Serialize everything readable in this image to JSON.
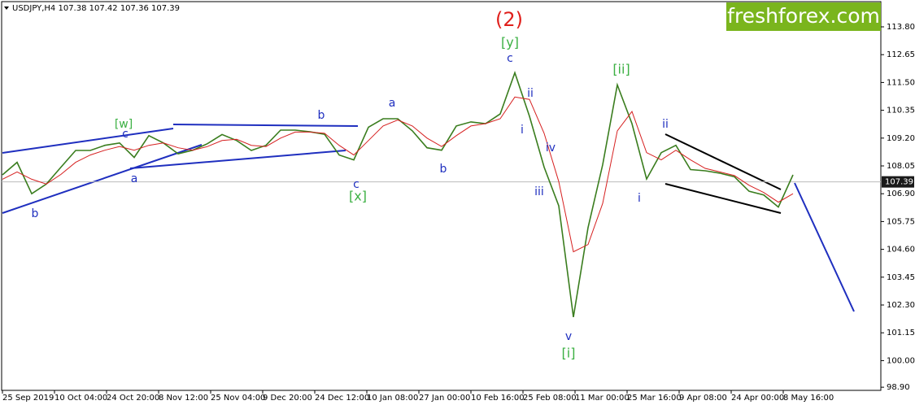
{
  "chart_data": {
    "type": "line",
    "header": "USDJPY,H4  107.38 107.42 107.36 107.39",
    "logo": "freshforex.com",
    "x_tick_labels": [
      "25 Sep 2019",
      "10 Oct 04:00",
      "24 Oct 20:00",
      "8 Nov 12:00",
      "25 Nov 04:00",
      "9 Dec 20:00",
      "24 Dec 12:00",
      "10 Jan 08:00",
      "27 Jan 00:00",
      "10 Feb 16:00",
      "25 Feb 08:00",
      "11 Mar 00:00",
      "25 Mar 16:00",
      "9 Apr 08:00",
      "24 Apr 00:00",
      "8 May 16:00"
    ],
    "ylim": [
      98.77,
      114.91
    ],
    "yticks": [
      {
        "value": 113.8,
        "label": "113.80"
      },
      112.65,
      {
        "value": 111.5,
        "label": "111.50"
      },
      110.35,
      {
        "value": 109.2,
        "label": "109.20"
      },
      108.05,
      {
        "value": 106.9,
        "label": "106.90"
      },
      105.75,
      {
        "value": 104.6,
        "label": "104.60"
      },
      103.45,
      {
        "value": 102.3,
        "label": "102.30"
      },
      101.15,
      {
        "value": 100,
        "label": "100.00"
      },
      {
        "value": 98.9,
        "label": "98.90"
      }
    ],
    "current_price": 107.39,
    "series": [
      {
        "name": "USDJPY",
        "color": "#3a7d1e",
        "values": [
          107.68,
          108.2,
          106.9,
          107.3,
          108.0,
          108.69,
          108.69,
          108.9,
          109.0,
          108.4,
          109.3,
          109.0,
          108.55,
          108.7,
          108.97,
          109.35,
          109.1,
          108.69,
          108.9,
          109.53,
          109.53,
          109.46,
          109.36,
          108.5,
          108.3,
          109.65,
          110.0,
          110.0,
          109.5,
          108.8,
          108.7,
          109.7,
          109.87,
          109.8,
          110.2,
          111.9,
          110.1,
          108.0,
          106.4,
          101.8,
          105.5,
          108.1,
          111.4,
          109.8,
          107.51,
          108.6,
          108.9,
          107.9,
          107.85,
          107.75,
          107.6,
          107.0,
          106.85,
          106.35,
          107.68
        ]
      },
      {
        "name": "MA",
        "color": "#d62020",
        "values": [
          107.5,
          107.8,
          107.5,
          107.3,
          107.7,
          108.2,
          108.5,
          108.7,
          108.85,
          108.7,
          108.9,
          109.0,
          108.8,
          108.7,
          108.85,
          109.1,
          109.15,
          108.9,
          108.85,
          109.2,
          109.45,
          109.45,
          109.4,
          108.9,
          108.5,
          109.1,
          109.7,
          109.95,
          109.7,
          109.2,
          108.85,
          109.3,
          109.7,
          109.8,
          110.0,
          110.9,
          110.8,
          109.4,
          107.4,
          104.5,
          104.8,
          106.5,
          109.5,
          110.3,
          108.6,
          108.3,
          108.7,
          108.3,
          107.95,
          107.8,
          107.65,
          107.25,
          106.95,
          106.55,
          106.9
        ]
      }
    ],
    "annotations": [
      {
        "text": "[w]",
        "color": "#3cb043"
      },
      {
        "text": "c",
        "color": "#1f2fbf"
      },
      {
        "text": "a",
        "color": "#1f2fbf"
      },
      {
        "text": "b",
        "color": "#1f2fbf"
      },
      {
        "text": "b",
        "color": "#1f2fbf"
      },
      {
        "text": "c",
        "color": "#1f2fbf"
      },
      {
        "text": "[x]",
        "color": "#3cb043"
      },
      {
        "text": "a",
        "color": "#1f2fbf"
      },
      {
        "text": "b",
        "color": "#1f2fbf"
      },
      {
        "text": "(2)",
        "color": "#e0201c"
      },
      {
        "text": "[y]",
        "color": "#3cb043"
      },
      {
        "text": "c",
        "color": "#1f2fbf"
      },
      {
        "text": "ii",
        "color": "#1f2fbf"
      },
      {
        "text": "i",
        "color": "#1f2fbf"
      },
      {
        "text": "iv",
        "color": "#1f2fbf"
      },
      {
        "text": "iii",
        "color": "#1f2fbf"
      },
      {
        "text": "v",
        "color": "#1f2fbf"
      },
      {
        "text": "[i]",
        "color": "#3cb043"
      },
      {
        "text": "[ii]",
        "color": "#3cb043"
      },
      {
        "text": "ii",
        "color": "#1f2fbf"
      },
      {
        "text": "i",
        "color": "#1f2fbf"
      }
    ]
  }
}
